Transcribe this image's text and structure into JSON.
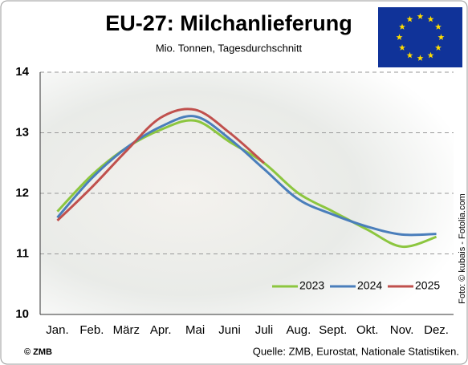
{
  "chart_data": {
    "type": "line",
    "title": "EU-27: Milchanlieferung",
    "subtitle": "Mio. Tonnen, Tagesdurchschnitt",
    "categories": [
      "Jan.",
      "Feb.",
      "März",
      "Apr.",
      "Mai",
      "Juni",
      "Juli",
      "Aug.",
      "Sept.",
      "Okt.",
      "Nov.",
      "Dez."
    ],
    "series": [
      {
        "name": "2023",
        "color": "#8cc63f",
        "values": [
          11.7,
          12.3,
          12.75,
          13.05,
          13.2,
          12.85,
          12.5,
          12.0,
          11.7,
          11.4,
          11.12,
          11.28
        ]
      },
      {
        "name": "2024",
        "color": "#4a7ebb",
        "values": [
          11.6,
          12.25,
          12.75,
          13.1,
          13.27,
          12.9,
          12.4,
          11.9,
          11.65,
          11.45,
          11.32,
          11.33
        ]
      },
      {
        "name": "2025",
        "color": "#c0504d",
        "values": [
          11.55,
          12.1,
          12.7,
          13.25,
          13.38,
          13.0,
          12.5,
          null,
          null,
          null,
          null,
          null
        ]
      }
    ],
    "ylim": [
      10,
      14
    ],
    "yticks": [
      10,
      11,
      12,
      13,
      14
    ],
    "grid": true,
    "legend": "lower right",
    "brand": "© ZMB",
    "source": "Quelle: ZMB, Eurostat, Nationale Statistiken.",
    "photo_credit": "Foto: © kubais - Fotolia.com"
  }
}
